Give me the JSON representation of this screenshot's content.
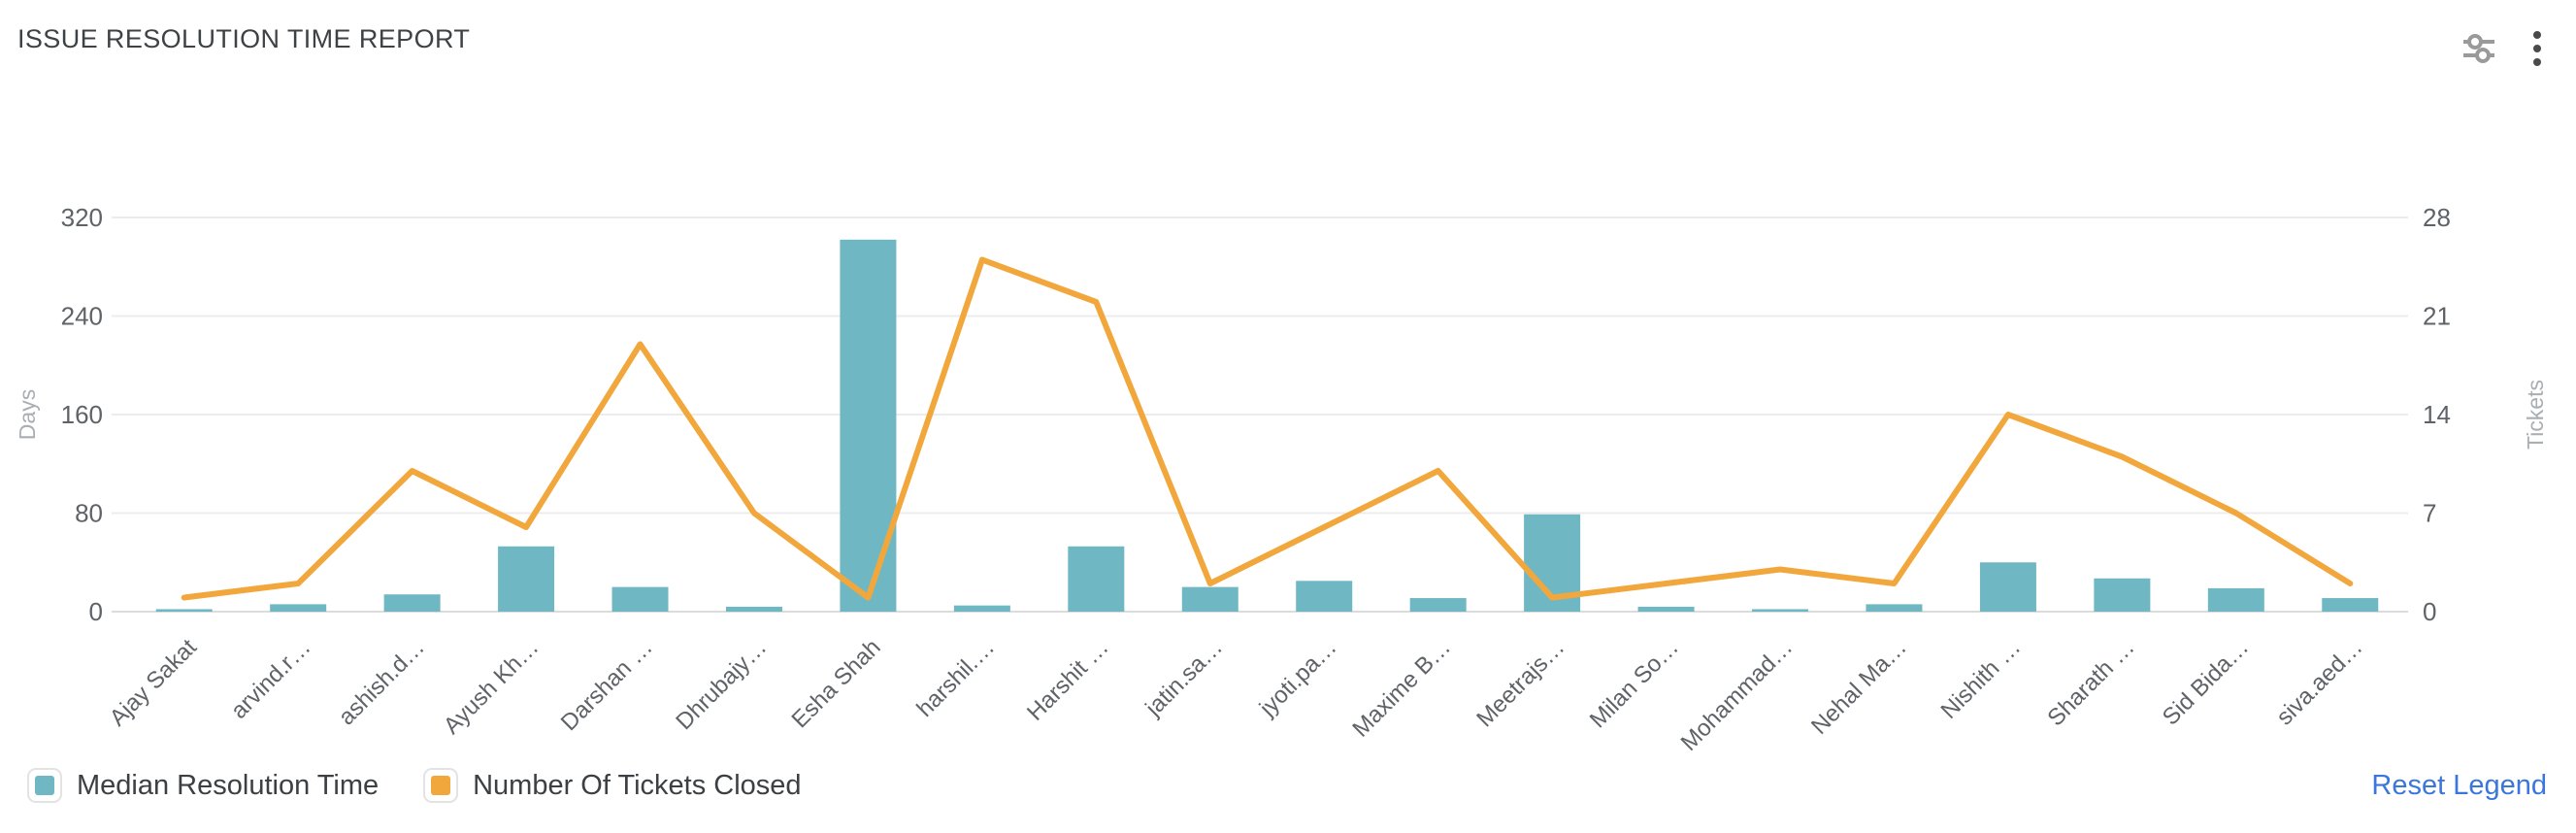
{
  "header": {
    "title": "ISSUE RESOLUTION TIME REPORT"
  },
  "toolbar": {
    "settings_icon": "sliders-icon",
    "more_icon": "kebab-menu-icon"
  },
  "chart_data": {
    "type": "combo-bar-line",
    "categories": [
      "Ajay Sakat",
      "arvind.r…",
      "ashish.d…",
      "Ayush Kh…",
      "Darshan …",
      "Dhrubajy…",
      "Esha Shah",
      "harshil.…",
      "Harshit …",
      "jatin.sa…",
      "jyoti.pa…",
      "Maxime B…",
      "Meetrajs…",
      "Milan So…",
      "Mohammad…",
      "Nehal Ma…",
      "Nishith …",
      "Sharath …",
      "Sid Bida…",
      "siva.aed…"
    ],
    "series": [
      {
        "name": "Median Resolution Time",
        "type": "bar",
        "y_axis": "left",
        "color": "#6FB8C3",
        "values": [
          2,
          6,
          14,
          53,
          20,
          4,
          302,
          5,
          53,
          20,
          25,
          11,
          79,
          4,
          2,
          6,
          40,
          27,
          19,
          11
        ]
      },
      {
        "name": "Number Of Tickets Closed",
        "type": "line",
        "y_axis": "right",
        "color": "#F2A73D",
        "values": [
          1,
          2,
          10,
          6,
          19,
          7,
          1,
          25,
          22,
          2,
          6,
          10,
          1,
          2,
          3,
          2,
          14,
          11,
          7,
          2
        ]
      }
    ],
    "left_axis": {
      "label": "Days",
      "ticks": [
        0,
        80,
        160,
        240,
        320
      ],
      "max": 320
    },
    "right_axis": {
      "label": "Tickets",
      "ticks": [
        0,
        7,
        14,
        21,
        28
      ],
      "max": 28
    },
    "grid": true,
    "legend_position": "bottom",
    "x_label_rotation": -45
  },
  "legend": {
    "items": [
      {
        "label": "Median Resolution Time",
        "color": "#6FB8C3"
      },
      {
        "label": "Number Of Tickets Closed",
        "color": "#F2A73D"
      }
    ],
    "reset_label": "Reset Legend",
    "reset_color": "#3A76DC"
  },
  "style_colors": {
    "title_text": "#3D4245",
    "axis_tick_text": "#5F6368",
    "axis_name_text": "#A9AEB3",
    "gridline": "#ECECEC",
    "axis_line": "#DCDCDC"
  }
}
